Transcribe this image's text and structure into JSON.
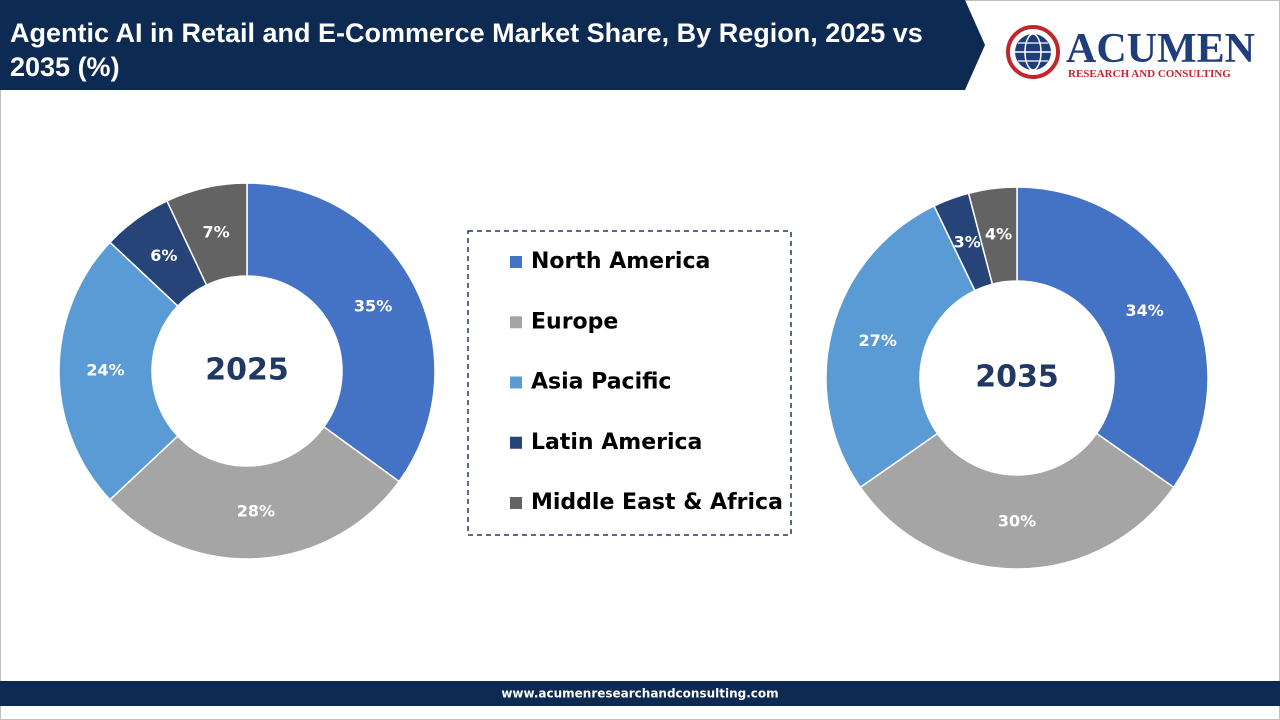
{
  "title": "Agentic AI in Retail and E-Commerce Market Share, By Region, 2025 vs 2035 (%)",
  "logo": {
    "name": "ACUMEN",
    "tagline": "RESEARCH AND CONSULTING"
  },
  "footer": "www.acumenresearchandconsulting.com",
  "chart_data": [
    {
      "type": "donut",
      "center_label": "2025",
      "categories": [
        "North America",
        "Europe",
        "Asia Pacific",
        "Latin America",
        "Middle East & Africa"
      ],
      "values": [
        35,
        28,
        24,
        6,
        7
      ],
      "value_labels": [
        "35%",
        "28%",
        "24%",
        "6%",
        "7%"
      ],
      "colors": [
        "#4472c4",
        "#a5a5a5",
        "#5b9bd5",
        "#264478",
        "#636363"
      ]
    },
    {
      "type": "donut",
      "center_label": "2035",
      "categories": [
        "North America",
        "Europe",
        "Asia Pacific",
        "Latin America",
        "Middle East & Africa"
      ],
      "values": [
        34,
        30,
        27,
        3,
        4
      ],
      "value_labels": [
        "34%",
        "30%",
        "27%",
        "3%",
        "4%"
      ],
      "colors": [
        "#4472c4",
        "#a5a5a5",
        "#5b9bd5",
        "#264478",
        "#636363"
      ]
    }
  ]
}
